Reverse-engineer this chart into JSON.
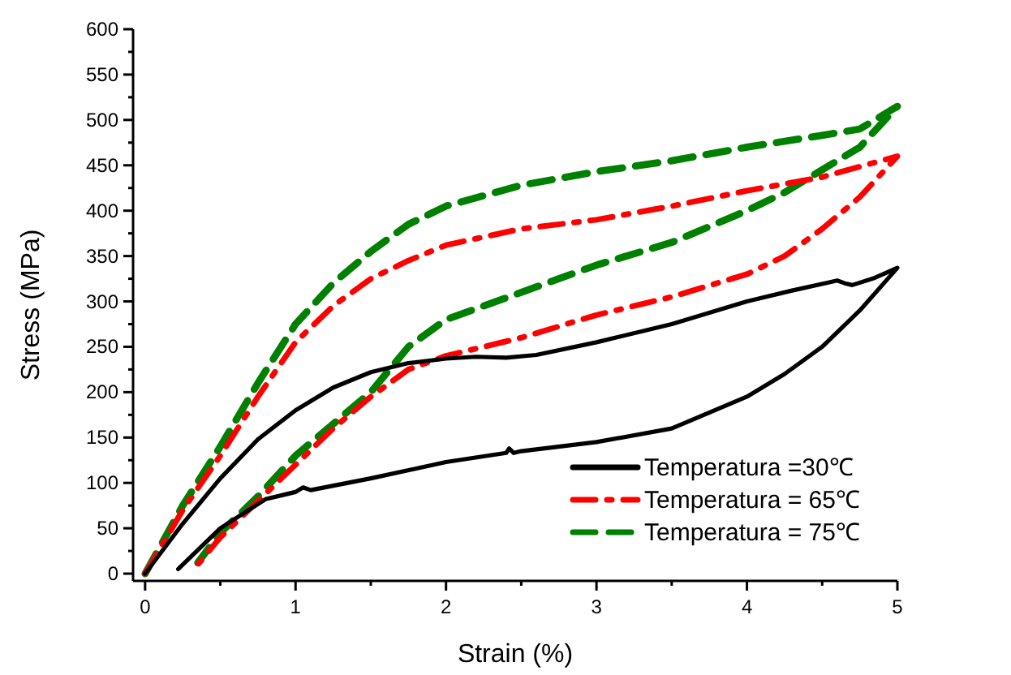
{
  "chart_data": {
    "type": "line",
    "xlabel": "Strain (%)",
    "ylabel": "Stress (MPa)",
    "xlim": [
      -0.08,
      5
    ],
    "ylim": [
      -8,
      600
    ],
    "xticks": [
      0,
      1,
      2,
      3,
      4,
      5
    ],
    "yticks": [
      0,
      50,
      100,
      150,
      200,
      250,
      300,
      350,
      400,
      450,
      500,
      550,
      600
    ],
    "grid": false,
    "legend": "bottom right",
    "series": [
      {
        "name": "Temperatura =30℃",
        "color": "#000000",
        "line_style": "solid",
        "x": [
          0,
          0.25,
          0.5,
          0.75,
          1,
          1.25,
          1.5,
          1.75,
          2,
          2.2,
          2.4,
          2.6,
          3,
          3.5,
          4,
          4.3,
          4.6,
          4.65,
          4.7,
          4.85,
          5,
          4.75,
          4.5,
          4.25,
          4,
          3.5,
          3,
          2.5,
          2.45,
          2.42,
          2.4,
          2,
          1.5,
          1.1,
          1.05,
          1,
          0.95,
          0.8,
          0.5,
          0.22
        ],
        "values": [
          0,
          55,
          105,
          148,
          180,
          205,
          222,
          232,
          237,
          239,
          238,
          241,
          255,
          275,
          300,
          312,
          323,
          320,
          318,
          326,
          337,
          290,
          250,
          220,
          195,
          160,
          145,
          135,
          133,
          138,
          133,
          123,
          105,
          92,
          95,
          90,
          88,
          82,
          50,
          5
        ]
      },
      {
        "name": "Temperatura = 65℃",
        "color": "#ff0000",
        "line_style": "dashdot",
        "x": [
          0,
          0.25,
          0.5,
          0.75,
          1,
          1.25,
          1.5,
          1.75,
          2,
          2.5,
          3,
          3.5,
          4,
          4.5,
          5,
          4.75,
          4.5,
          4.25,
          4,
          3.5,
          3,
          2.5,
          2,
          1.75,
          1.5,
          1.25,
          1,
          0.75,
          0.5,
          0.35
        ],
        "values": [
          0,
          70,
          130,
          195,
          255,
          295,
          325,
          345,
          362,
          380,
          390,
          405,
          422,
          437,
          460,
          415,
          380,
          350,
          330,
          305,
          285,
          260,
          240,
          225,
          195,
          160,
          120,
          80,
          40,
          10
        ]
      },
      {
        "name": "Temperatura = 75℃",
        "color": "#008000",
        "line_style": "dashed",
        "x": [
          0,
          0.25,
          0.5,
          0.75,
          1,
          1.25,
          1.5,
          1.75,
          2,
          2.5,
          3,
          3.5,
          4,
          4.5,
          4.75,
          5,
          4.75,
          4.5,
          4.25,
          4,
          3.5,
          3,
          2.5,
          2,
          1.75,
          1.5,
          1.25,
          1,
          0.75,
          0.5,
          0.35
        ],
        "values": [
          0,
          75,
          140,
          210,
          275,
          320,
          355,
          385,
          405,
          428,
          443,
          455,
          470,
          483,
          490,
          515,
          470,
          445,
          420,
          400,
          365,
          340,
          310,
          280,
          250,
          200,
          165,
          130,
          85,
          45,
          12
        ]
      }
    ]
  }
}
